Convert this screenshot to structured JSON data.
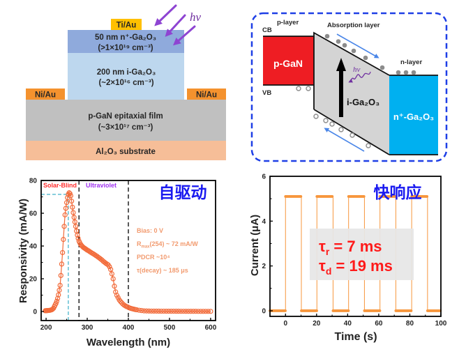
{
  "device_structure": {
    "top_contact": "Ti/Au",
    "light_label": "hv",
    "n_plus_layer": {
      "line1": "50 nm n⁺-Ga₂O₃",
      "line2": "(>1×10¹⁹ cm⁻³)"
    },
    "i_layer": {
      "line1": "200 nm i-Ga₂O₃",
      "line2": "(~2×10¹⁶ cm⁻³)"
    },
    "left_contact": "Ni/Au",
    "right_contact": "Ni/Au",
    "p_gan_layer": {
      "line1": "p-GaN epitaxial film",
      "line2": "(~3×10¹⁷ cm⁻³)"
    },
    "substrate": "Al₂O₃ substrate",
    "colors": {
      "top_contact": "#FFC000",
      "n_plus_layer": "#8FAADC",
      "i_layer": "#BDD7EE",
      "side_contact": "#F4922E",
      "p_gan_layer": "#C0C0C0",
      "substrate": "#F6BE98",
      "light": "#8E44D2",
      "light_label": "#7030A0"
    }
  },
  "band_diagram": {
    "p_layer_label": "p-layer",
    "cb_label": "CB",
    "absorption_label": "Absorption layer",
    "n_layer_label": "n-layer",
    "vb_label": "VB",
    "p_region_label": "p-GaN",
    "i_region_label": "i-Ga₂O₃",
    "n_region_label": "n⁺-Ga₂O₃",
    "light_label": "hv",
    "colors": {
      "p_region": "#EE1D23",
      "i_region": "#D4D4D4",
      "n_region": "#00B0F0",
      "frame": "#1E3FE6",
      "carrier_flow": "#4A86E8",
      "light": "#7030A0",
      "electron": "#8C8C8C"
    }
  },
  "chart_data": [
    {
      "type": "line",
      "title": "自驱动",
      "title_color": "#1A1AF0",
      "xlabel": "Wavelength (nm)",
      "ylabel": "Responsivity (mA/W)",
      "xlim": [
        188,
        612
      ],
      "ylim": [
        -5.5,
        80
      ],
      "xticks": [
        200,
        300,
        400,
        500,
        600
      ],
      "yticks": [
        0,
        20,
        40,
        60,
        80
      ],
      "grid": false,
      "series": [
        {
          "name": "Responsivity",
          "marker": "open-circle",
          "color": "#F26B3A",
          "x": [
            198,
            200,
            202,
            204,
            206,
            208,
            210,
            212,
            214,
            216,
            218,
            220,
            222,
            224,
            226,
            228,
            230,
            232,
            234,
            236,
            238,
            240,
            242,
            244,
            246,
            248,
            250,
            252,
            254,
            256,
            258,
            260,
            262,
            264,
            266,
            268,
            270,
            272,
            274,
            276,
            278,
            280,
            282,
            284,
            286,
            288,
            290,
            292,
            294,
            296,
            298,
            300,
            303,
            306,
            309,
            312,
            315,
            318,
            321,
            324,
            327,
            330,
            333,
            336,
            339,
            342,
            345,
            348,
            351,
            354,
            357,
            360,
            363,
            366,
            369,
            372,
            375,
            378,
            381,
            384,
            387,
            390,
            393,
            396,
            399,
            402,
            405,
            408,
            411,
            414,
            417,
            420,
            426,
            432,
            438,
            444,
            450,
            456,
            462,
            468,
            474,
            480,
            486,
            492,
            498,
            504,
            510,
            516,
            522,
            528,
            534,
            540,
            546,
            552,
            558,
            564,
            570,
            576,
            582,
            588,
            594,
            600
          ],
          "y": [
            0.5,
            0.5,
            0.6,
            0.6,
            0.7,
            0.7,
            0.8,
            1.0,
            1.1,
            1.5,
            2.0,
            3.0,
            4.0,
            5.0,
            6.3,
            8.0,
            10.2,
            13.0,
            16.0,
            22.0,
            29.0,
            36.0,
            44.0,
            52.0,
            59.0,
            63.0,
            66.5,
            69.5,
            71.5,
            72.5,
            72.0,
            70.7,
            67.4,
            63.7,
            60.4,
            57.5,
            54.7,
            52.0,
            49.2,
            46.7,
            44.7,
            43.0,
            41.9,
            41.0,
            40.3,
            39.8,
            39.3,
            38.9,
            38.6,
            38.2,
            37.9,
            37.5,
            37.1,
            36.6,
            36.1,
            35.6,
            35.2,
            34.7,
            34.2,
            33.7,
            33.1,
            32.6,
            32.0,
            31.4,
            30.7,
            30.1,
            29.5,
            29.0,
            28.5,
            27.4,
            25.7,
            23.0,
            20.0,
            15.5,
            12.0,
            9.9,
            8.5,
            7.1,
            6.1,
            5.3,
            4.5,
            3.9,
            3.4,
            3.0,
            2.7,
            2.3,
            2.0,
            1.8,
            1.6,
            1.4,
            1.2,
            1.1,
            0.8,
            0.6,
            0.4,
            0.35,
            0.3,
            0.27,
            0.25,
            0.24,
            0.23,
            0.22,
            0.21,
            0.2,
            0.2,
            0.2,
            0.19,
            0.18,
            0.18,
            0.17,
            0.16,
            0.15,
            0.15,
            0.14,
            0.13,
            0.13,
            0.12,
            0.11,
            0.11,
            0.1,
            0.1,
            0.1
          ]
        }
      ],
      "regions": [
        {
          "label": "Solar-Blind",
          "color": "#FF2D2D"
        },
        {
          "label": "Ultraviolet",
          "color": "#A033F0"
        }
      ],
      "reference_lines": {
        "dashed_vertical_nm": [
          280,
          400
        ],
        "dashed_color": "#222222",
        "peak_wavelength_nm": 254,
        "peak_responsivity": 71.5,
        "peak_guide_color": "#6CC3D5"
      },
      "annotations": {
        "color": "#F29A6E",
        "bias": "Bias: 0 V",
        "rmax": {
          "symbol": "R",
          "subscript": "max",
          "text": "(254) ~ 72 mA/W"
        },
        "pdcr": "PDCR ~10⁴",
        "tau_decay": "τ(decay) ~ 185 μs"
      }
    },
    {
      "type": "line",
      "title": "快响应",
      "title_color": "#1A1AF0",
      "xlabel": "Time (s)",
      "ylabel": "Current (μA)",
      "xlim": [
        -10,
        100
      ],
      "ylim": [
        -0.25,
        6
      ],
      "xticks": [
        0,
        20,
        40,
        60,
        80,
        100
      ],
      "yticks": [
        0,
        2,
        4,
        6
      ],
      "grid": false,
      "series": [
        {
          "name": "Photocurrent",
          "marker": "dot",
          "color": "#F7963C",
          "x": [
            -10,
            0,
            0,
            10.2,
            10.2,
            20.2,
            20.2,
            30.6,
            30.6,
            40.6,
            40.6,
            50.8,
            50.8,
            60.8,
            60.8,
            71,
            71,
            81.2,
            81.2,
            91.4,
            91.4,
            100
          ],
          "y": [
            0,
            0,
            5.1,
            5.1,
            0,
            0,
            5.1,
            5.1,
            0,
            0,
            5.1,
            5.1,
            0,
            0,
            5.1,
            5.1,
            0,
            0,
            5.1,
            5.1,
            0,
            0
          ]
        }
      ],
      "annotations": {
        "color": "#FF1A1A",
        "box_color": "#E6E6E6",
        "tau_r": {
          "symbol": "τ",
          "subscript": "r",
          "text": " = 7 ms"
        },
        "tau_d": {
          "symbol": "τ",
          "subscript": "d",
          "text": " = 19 ms"
        }
      }
    }
  ]
}
